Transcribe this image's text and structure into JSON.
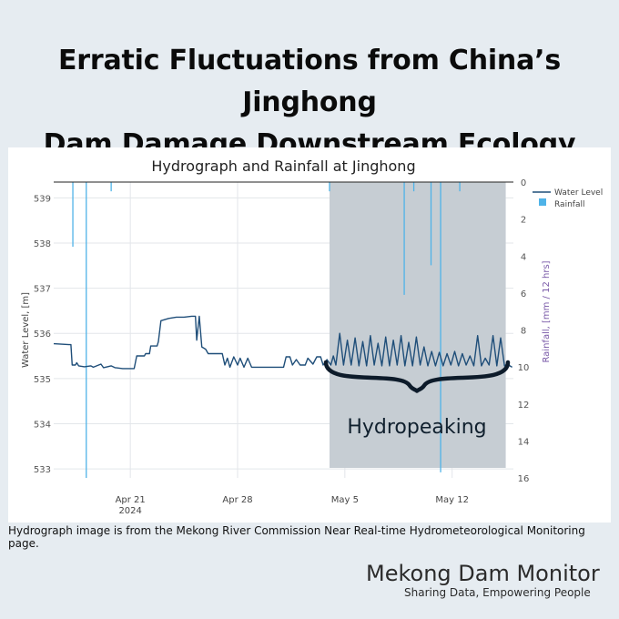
{
  "headline": {
    "line1": "Erratic Fluctuations from China’s Jinghong",
    "line2": "Dam Damage Downstream Ecology"
  },
  "caption": "Hydrograph image is from the Mekong River Commission Near Real-time Hydrometeorological Monitoring page.",
  "brand": {
    "name": "Mekong Dam Monitor",
    "tagline": "Sharing Data, Empowering People"
  },
  "colors": {
    "background": "#e6ecf1",
    "water_level": "#1f4e79",
    "rainfall": "#4fb3e8",
    "shade": "#c6cdd3",
    "brace": "#0d1b2a",
    "axis_text": "#555555",
    "secondary_axis": "#7a5aa8"
  },
  "chart_data": {
    "type": "line",
    "title": "Hydrograph and Rainfall at Jinghong",
    "ylabel": "Water Level, [m]",
    "y2label": "Rainfall, [mm / 12 hrs]",
    "ylim": [
      532.8,
      539.35
    ],
    "y2lim": [
      0,
      16
    ],
    "y2_reversed": true,
    "xlim": [
      "2024-04-16T00:00",
      "2024-05-16T00:00"
    ],
    "yticks": [
      533,
      534,
      535,
      536,
      537,
      538,
      539
    ],
    "y2ticks": [
      0,
      2,
      4,
      6,
      8,
      10,
      12,
      14,
      16
    ],
    "xticks": [
      {
        "date": "2024-04-21",
        "label": "Apr 21",
        "sublabel": "2024"
      },
      {
        "date": "2024-04-28",
        "label": "Apr 28",
        "sublabel": ""
      },
      {
        "date": "2024-05-05",
        "label": "May 5",
        "sublabel": ""
      },
      {
        "date": "2024-05-12",
        "label": "May 12",
        "sublabel": ""
      }
    ],
    "grid": true,
    "legend_position": "top-right",
    "series": [
      {
        "name": "Water Level",
        "kind": "line",
        "points": [
          [
            "2024-04-16T00:00",
            535.77
          ],
          [
            "2024-04-17T00:00",
            535.75
          ],
          [
            "2024-04-17T03:00",
            535.75
          ],
          [
            "2024-04-17T05:00",
            535.3
          ],
          [
            "2024-04-17T10:00",
            535.3
          ],
          [
            "2024-04-17T12:00",
            535.35
          ],
          [
            "2024-04-17T15:00",
            535.28
          ],
          [
            "2024-04-18T00:00",
            535.26
          ],
          [
            "2024-04-18T10:00",
            535.28
          ],
          [
            "2024-04-18T14:00",
            535.25
          ],
          [
            "2024-04-19T02:00",
            535.32
          ],
          [
            "2024-04-19T06:00",
            535.24
          ],
          [
            "2024-04-19T18:00",
            535.28
          ],
          [
            "2024-04-20T00:00",
            535.24
          ],
          [
            "2024-04-20T12:00",
            535.22
          ],
          [
            "2024-04-21T06:00",
            535.22
          ],
          [
            "2024-04-21T10:00",
            535.5
          ],
          [
            "2024-04-21T22:00",
            535.5
          ],
          [
            "2024-04-22T00:00",
            535.55
          ],
          [
            "2024-04-22T06:00",
            535.55
          ],
          [
            "2024-04-22T08:00",
            535.72
          ],
          [
            "2024-04-22T18:00",
            535.72
          ],
          [
            "2024-04-22T20:00",
            535.82
          ],
          [
            "2024-04-23T00:00",
            536.28
          ],
          [
            "2024-04-23T12:00",
            536.33
          ],
          [
            "2024-04-24T00:00",
            536.36
          ],
          [
            "2024-04-24T12:00",
            536.36
          ],
          [
            "2024-04-25T00:00",
            536.38
          ],
          [
            "2024-04-25T06:00",
            536.38
          ],
          [
            "2024-04-25T08:00",
            535.85
          ],
          [
            "2024-04-25T12:00",
            536.38
          ],
          [
            "2024-04-25T16:00",
            535.7
          ],
          [
            "2024-04-25T22:00",
            535.65
          ],
          [
            "2024-04-26T02:00",
            535.55
          ],
          [
            "2024-04-26T12:00",
            535.55
          ],
          [
            "2024-04-27T00:00",
            535.55
          ],
          [
            "2024-04-27T04:00",
            535.3
          ],
          [
            "2024-04-27T08:00",
            535.45
          ],
          [
            "2024-04-27T12:00",
            535.25
          ],
          [
            "2024-04-27T18:00",
            535.48
          ],
          [
            "2024-04-28T00:00",
            535.3
          ],
          [
            "2024-04-28T04:00",
            535.45
          ],
          [
            "2024-04-28T10:00",
            535.25
          ],
          [
            "2024-04-28T16:00",
            535.45
          ],
          [
            "2024-04-28T22:00",
            535.25
          ],
          [
            "2024-04-29T12:00",
            535.25
          ],
          [
            "2024-04-30T06:00",
            535.25
          ],
          [
            "2024-05-01T00:00",
            535.25
          ],
          [
            "2024-05-01T04:00",
            535.48
          ],
          [
            "2024-05-01T10:00",
            535.48
          ],
          [
            "2024-05-01T14:00",
            535.3
          ],
          [
            "2024-05-01T20:00",
            535.42
          ],
          [
            "2024-05-02T02:00",
            535.3
          ],
          [
            "2024-05-02T10:00",
            535.3
          ],
          [
            "2024-05-02T14:00",
            535.45
          ],
          [
            "2024-05-02T22:00",
            535.32
          ],
          [
            "2024-05-03T04:00",
            535.48
          ],
          [
            "2024-05-03T10:00",
            535.48
          ],
          [
            "2024-05-03T14:00",
            535.3
          ],
          [
            "2024-05-03T20:00",
            535.42
          ],
          [
            "2024-05-04T02:00",
            535.3
          ],
          [
            "2024-05-04T06:00",
            535.5
          ],
          [
            "2024-05-04T10:00",
            535.3
          ],
          [
            "2024-05-04T16:00",
            536.0
          ],
          [
            "2024-05-04T22:00",
            535.3
          ],
          [
            "2024-05-05T04:00",
            535.85
          ],
          [
            "2024-05-05T10:00",
            535.3
          ],
          [
            "2024-05-05T16:00",
            535.9
          ],
          [
            "2024-05-05T22:00",
            535.28
          ],
          [
            "2024-05-06T04:00",
            535.82
          ],
          [
            "2024-05-06T10:00",
            535.28
          ],
          [
            "2024-05-06T16:00",
            535.95
          ],
          [
            "2024-05-06T22:00",
            535.3
          ],
          [
            "2024-05-07T04:00",
            535.78
          ],
          [
            "2024-05-07T10:00",
            535.28
          ],
          [
            "2024-05-07T16:00",
            535.92
          ],
          [
            "2024-05-07T22:00",
            535.28
          ],
          [
            "2024-05-08T04:00",
            535.85
          ],
          [
            "2024-05-08T10:00",
            535.3
          ],
          [
            "2024-05-08T16:00",
            535.95
          ],
          [
            "2024-05-08T22:00",
            535.28
          ],
          [
            "2024-05-09T04:00",
            535.8
          ],
          [
            "2024-05-09T10:00",
            535.28
          ],
          [
            "2024-05-09T16:00",
            535.92
          ],
          [
            "2024-05-09T22:00",
            535.3
          ],
          [
            "2024-05-10T04:00",
            535.7
          ],
          [
            "2024-05-10T10:00",
            535.28
          ],
          [
            "2024-05-10T16:00",
            535.6
          ],
          [
            "2024-05-10T22:00",
            535.28
          ],
          [
            "2024-05-11T04:00",
            535.58
          ],
          [
            "2024-05-11T10:00",
            535.28
          ],
          [
            "2024-05-11T16:00",
            535.55
          ],
          [
            "2024-05-11T22:00",
            535.3
          ],
          [
            "2024-05-12T04:00",
            535.6
          ],
          [
            "2024-05-12T10:00",
            535.28
          ],
          [
            "2024-05-12T16:00",
            535.55
          ],
          [
            "2024-05-12T22:00",
            535.3
          ],
          [
            "2024-05-13T04:00",
            535.5
          ],
          [
            "2024-05-13T10:00",
            535.28
          ],
          [
            "2024-05-13T16:00",
            535.95
          ],
          [
            "2024-05-13T22:00",
            535.28
          ],
          [
            "2024-05-14T04:00",
            535.45
          ],
          [
            "2024-05-14T10:00",
            535.3
          ],
          [
            "2024-05-14T16:00",
            535.95
          ],
          [
            "2024-05-14T22:00",
            535.28
          ],
          [
            "2024-05-15T04:00",
            535.9
          ],
          [
            "2024-05-15T10:00",
            535.28
          ],
          [
            "2024-05-15T14:00",
            535.32
          ],
          [
            "2024-05-15T22:00",
            535.25
          ]
        ]
      },
      {
        "name": "Rainfall",
        "kind": "bar",
        "points": [
          [
            "2024-04-17T06:00",
            3.5
          ],
          [
            "2024-04-18T03:00",
            16.0
          ],
          [
            "2024-04-19T18:00",
            0.5
          ],
          [
            "2024-05-04T00:00",
            0.5
          ],
          [
            "2024-05-08T21:00",
            6.1
          ],
          [
            "2024-05-09T12:00",
            0.5
          ],
          [
            "2024-05-10T15:00",
            4.5
          ],
          [
            "2024-05-11T06:00",
            15.7
          ],
          [
            "2024-05-12T12:00",
            0.5
          ]
        ]
      }
    ],
    "annotations": [
      {
        "type": "shaded_region",
        "x_from": "2024-05-04T00:00",
        "x_to": "2024-05-15T12:00"
      },
      {
        "type": "brace",
        "label": "Hydropeaking"
      }
    ]
  }
}
